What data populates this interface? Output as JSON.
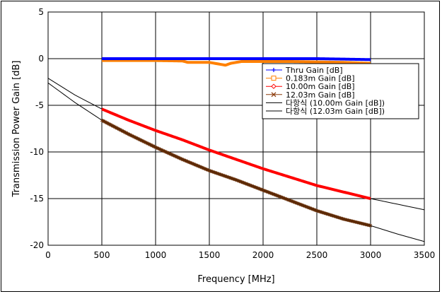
{
  "chart_data": {
    "type": "line",
    "title": "",
    "xlabel": "Frequency [MHz]",
    "ylabel": "Transmission Power Gain  [dB]",
    "xlim": [
      0,
      3500
    ],
    "ylim": [
      -20,
      5
    ],
    "xticks": [
      0,
      500,
      1000,
      1500,
      2000,
      2500,
      3000,
      3500
    ],
    "yticks": [
      5,
      0,
      -5,
      -10,
      -15,
      -20
    ],
    "xtick_labels": [
      "0",
      "500",
      "1000",
      "1500",
      "2000",
      "2500",
      "3000",
      "3500"
    ],
    "ytick_labels": [
      "5",
      "0",
      "-5",
      "-10",
      "-15",
      "-20"
    ],
    "grid": true,
    "legend_position": "top-right",
    "series": [
      {
        "name": "Thru Gain [dB]",
        "color": "#0000ff",
        "marker": "plus",
        "x": [
          500,
          750,
          1000,
          1250,
          1500,
          1750,
          2000,
          2250,
          2500,
          2750,
          3000
        ],
        "y": [
          0.0,
          0.0,
          0.0,
          0.0,
          0.0,
          0.0,
          0.0,
          0.0,
          0.0,
          -0.05,
          -0.1
        ]
      },
      {
        "name": "0.183m Gain [dB]",
        "color": "#ff8000",
        "marker": "square",
        "x": [
          500,
          750,
          1000,
          1250,
          1300,
          1500,
          1600,
          1650,
          1700,
          1800,
          2000,
          2250,
          2500,
          2750,
          3000
        ],
        "y": [
          -0.2,
          -0.2,
          -0.2,
          -0.25,
          -0.4,
          -0.4,
          -0.6,
          -0.7,
          -0.5,
          -0.3,
          -0.3,
          -0.3,
          -0.35,
          -0.4,
          -0.5
        ]
      },
      {
        "name": "10.00m Gain [dB]",
        "color": "#ff0000",
        "marker": "diamond",
        "x": [
          500,
          750,
          1000,
          1250,
          1500,
          1750,
          2000,
          2250,
          2500,
          2750,
          3000
        ],
        "y": [
          -5.4,
          -6.6,
          -7.7,
          -8.7,
          -9.8,
          -10.8,
          -11.8,
          -12.7,
          -13.6,
          -14.3,
          -15.0
        ]
      },
      {
        "name": "12.03m Gain [dB]",
        "color": "#8b3a0a",
        "marker": "x",
        "x": [
          500,
          750,
          1000,
          1250,
          1500,
          1750,
          2000,
          2250,
          2500,
          2750,
          3000
        ],
        "y": [
          -6.6,
          -8.1,
          -9.5,
          -10.8,
          -12.0,
          -13.0,
          -14.1,
          -15.2,
          -16.3,
          -17.2,
          -17.9
        ]
      },
      {
        "name": "다항식 (10.00m Gain [dB])",
        "color": "#000000",
        "marker": "none",
        "x": [
          0,
          250,
          500,
          750,
          1000,
          1250,
          1500,
          1750,
          2000,
          2250,
          2500,
          2750,
          3000,
          3250,
          3500
        ],
        "y": [
          -2.1,
          -3.9,
          -5.4,
          -6.6,
          -7.7,
          -8.7,
          -9.8,
          -10.8,
          -11.8,
          -12.7,
          -13.6,
          -14.3,
          -15.0,
          -15.6,
          -16.2
        ]
      },
      {
        "name": "다항식 (12.03m Gain [dB])",
        "color": "#000000",
        "marker": "none",
        "x": [
          0,
          250,
          500,
          750,
          1000,
          1250,
          1500,
          1750,
          2000,
          2250,
          2500,
          2750,
          3000,
          3250,
          3500
        ],
        "y": [
          -2.6,
          -4.7,
          -6.6,
          -8.1,
          -9.5,
          -10.8,
          -12.0,
          -13.0,
          -14.1,
          -15.2,
          -16.3,
          -17.2,
          -17.9,
          -18.8,
          -19.6
        ]
      }
    ]
  }
}
